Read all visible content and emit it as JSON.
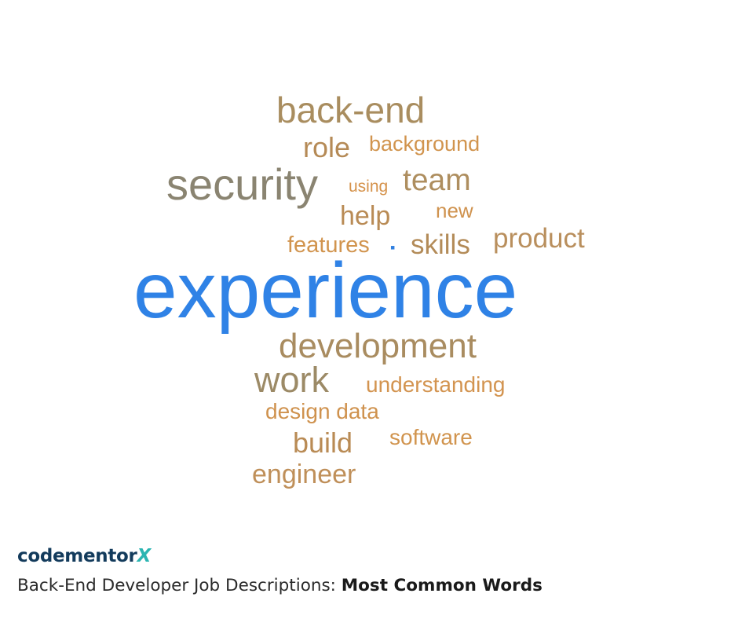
{
  "word_cloud": {
    "words": [
      {
        "text": "back-end",
        "color": "#a98d5f"
      },
      {
        "text": "role",
        "color": "#b58a56"
      },
      {
        "text": "background",
        "color": "#d1944e"
      },
      {
        "text": "security",
        "color": "#8a8471"
      },
      {
        "text": "using",
        "color": "#d5924b"
      },
      {
        "text": "team",
        "color": "#ae8e5f"
      },
      {
        "text": "help",
        "color": "#b98b55"
      },
      {
        "text": "new",
        "color": "#cf924e"
      },
      {
        "text": "features",
        "color": "#d1944e"
      },
      {
        "text": "▪",
        "color": "#2f7fe0"
      },
      {
        "text": "skills",
        "color": "#b38b58"
      },
      {
        "text": "product",
        "color": "#b98f5d"
      },
      {
        "text": "experience",
        "color": "#2f82e6"
      },
      {
        "text": "development",
        "color": "#a98c60"
      },
      {
        "text": "work",
        "color": "#9c8a66"
      },
      {
        "text": "understanding",
        "color": "#d39450"
      },
      {
        "text": "design data",
        "color": "#cf924e"
      },
      {
        "text": "build",
        "color": "#b98b55"
      },
      {
        "text": "software",
        "color": "#d1944e"
      },
      {
        "text": "engineer",
        "color": "#bf8f59"
      }
    ]
  },
  "footer": {
    "brand": {
      "text": "codementor",
      "x": "X",
      "color": "#133b5c",
      "x_color": "#2bb5b2"
    },
    "caption": {
      "prefix": "Back-End Developer Job Descriptions: ",
      "bold": "Most Common Words"
    }
  }
}
